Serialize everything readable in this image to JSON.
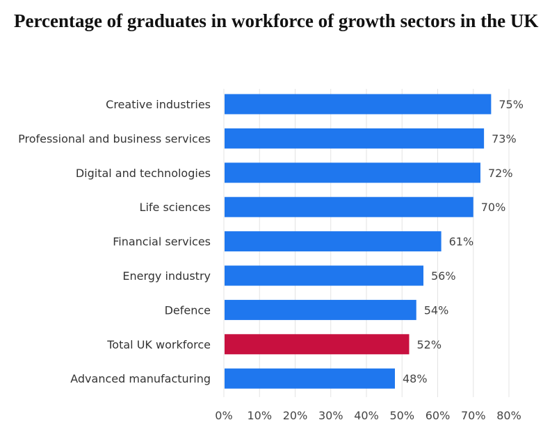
{
  "chart_data": {
    "type": "bar",
    "orientation": "horizontal",
    "title": "Percentage of graduates in workforce of growth sectors in the UK",
    "categories": [
      "Creative industries",
      "Professional and business services",
      "Digital and technologies",
      "Life sciences",
      "Financial services",
      "Energy industry",
      "Defence",
      "Total UK workforce",
      "Advanced manufacturing"
    ],
    "values": [
      75,
      73,
      72,
      70,
      61,
      56,
      54,
      52,
      48
    ],
    "value_labels": [
      "75%",
      "73%",
      "72%",
      "70%",
      "61%",
      "56%",
      "54%",
      "52%",
      "48%"
    ],
    "xlim": [
      0,
      80
    ],
    "xticks": [
      0,
      10,
      20,
      30,
      40,
      50,
      60,
      70,
      80
    ],
    "xtick_labels": [
      "0%",
      "10%",
      "20%",
      "30%",
      "40%",
      "50%",
      "60%",
      "70%",
      "80%"
    ],
    "grid": "vertical",
    "legend": "none",
    "colors": {
      "bar": "#1f77ee",
      "highlight": "#c8103f",
      "highlight_category": "Total UK workforce"
    }
  }
}
